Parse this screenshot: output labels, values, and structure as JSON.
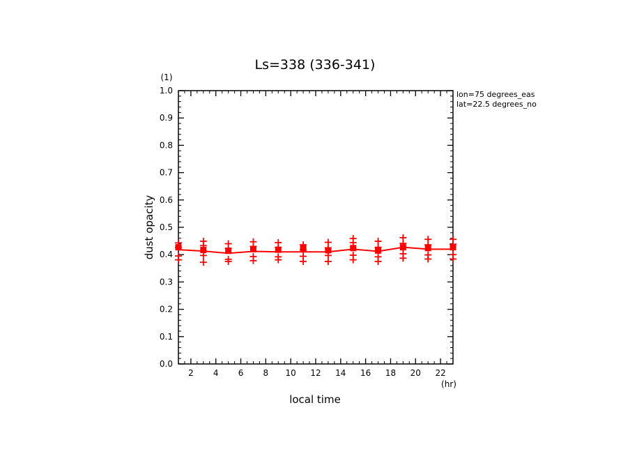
{
  "chart_data": {
    "type": "line",
    "title": "Ls=338 (336-341)",
    "xlabel": "local time",
    "ylabel": "dust opacity",
    "x_unit": "(hr)",
    "y_unit": "(1)",
    "annotations": [
      "lon=75 degrees_eas",
      "lat=22.5 degrees_no"
    ],
    "xlim": [
      1,
      23
    ],
    "ylim": [
      0.0,
      1.0
    ],
    "x_ticks": [
      2,
      4,
      6,
      8,
      10,
      12,
      14,
      16,
      18,
      20,
      22
    ],
    "x_tick_labels": [
      "2",
      "4",
      "6",
      "8",
      "10",
      "12",
      "14",
      "16",
      "18",
      "20",
      "22"
    ],
    "y_ticks": [
      0.0,
      0.1,
      0.2,
      0.3,
      0.4,
      0.5,
      0.6,
      0.7,
      0.8,
      0.9,
      1.0
    ],
    "y_tick_labels": [
      "0.0",
      "0.1",
      "0.2",
      "0.3",
      "0.4",
      "0.5",
      "0.6",
      "0.7",
      "0.8",
      "0.9",
      "1.0"
    ],
    "series": [
      {
        "marker": "square",
        "x": [
          1,
          3,
          5,
          7,
          9,
          11,
          13,
          15,
          17,
          19,
          21,
          23
        ],
        "line_values": [
          0.418,
          0.413,
          0.405,
          0.412,
          0.41,
          0.41,
          0.41,
          0.42,
          0.412,
          0.427,
          0.42,
          0.42
        ],
        "marker_values": [
          0.427,
          0.417,
          0.414,
          0.42,
          0.418,
          0.424,
          0.416,
          0.424,
          0.415,
          0.427,
          0.424,
          0.427
        ],
        "scatter": [
          [
            0.443,
            0.427,
            0.395,
            0.381
          ],
          [
            0.449,
            0.433,
            0.397,
            0.372
          ],
          [
            0.44,
            0.423,
            0.383,
            0.375
          ],
          [
            0.447,
            0.43,
            0.393,
            0.378
          ],
          [
            0.444,
            0.426,
            0.392,
            0.381
          ],
          [
            0.436,
            0.418,
            0.394,
            0.375
          ],
          [
            0.445,
            0.425,
            0.397,
            0.375
          ],
          [
            0.459,
            0.444,
            0.398,
            0.381
          ],
          [
            0.449,
            0.427,
            0.392,
            0.375
          ],
          [
            0.462,
            0.441,
            0.403,
            0.387
          ],
          [
            0.456,
            0.436,
            0.399,
            0.384
          ],
          [
            0.456,
            0.438,
            0.4,
            0.384
          ]
        ]
      }
    ],
    "colors": {
      "series": "#ff0000",
      "axes": "#000000"
    },
    "grid": false
  }
}
